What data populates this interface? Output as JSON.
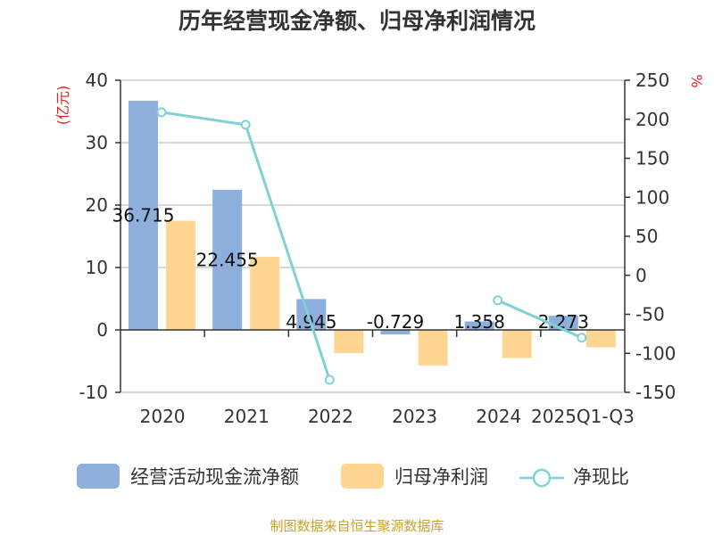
{
  "chart_data": {
    "type": "bar",
    "title": "历年经营现金净额、归母净利润情况",
    "categories": [
      "2020",
      "2021",
      "2022",
      "2023",
      "2024",
      "2025Q1-Q3"
    ],
    "left_axis": {
      "unit": "(亿元)",
      "ylim": [
        -10,
        40
      ],
      "ticks": [
        -10,
        0,
        10,
        20,
        30,
        40
      ]
    },
    "right_axis": {
      "unit": "%",
      "ylim": [
        -150,
        250
      ],
      "ticks": [
        -150,
        -100,
        -50,
        0,
        50,
        100,
        150,
        200,
        250
      ]
    },
    "series": [
      {
        "name": "经营活动现金流净额",
        "type": "bar",
        "axis": "left",
        "color": "#8eaedb",
        "values": [
          36.715,
          22.455,
          4.945,
          -0.729,
          1.358,
          2.273
        ],
        "labels": [
          "36.715",
          "22.455",
          "4.945",
          "-0.729",
          "1.358",
          "2.273"
        ]
      },
      {
        "name": "归母净利润",
        "type": "bar",
        "axis": "left",
        "color": "#ffd592",
        "values": [
          17.5,
          11.7,
          -3.7,
          -5.7,
          -4.5,
          -2.8
        ]
      },
      {
        "name": "净现比",
        "type": "line",
        "axis": "right",
        "color": "#7fd1d6",
        "values": [
          209,
          193,
          -134,
          null,
          -32,
          -80
        ]
      }
    ],
    "grid": true,
    "legend_position": "bottom"
  },
  "source": "制图数据来自恒生聚源数据库"
}
